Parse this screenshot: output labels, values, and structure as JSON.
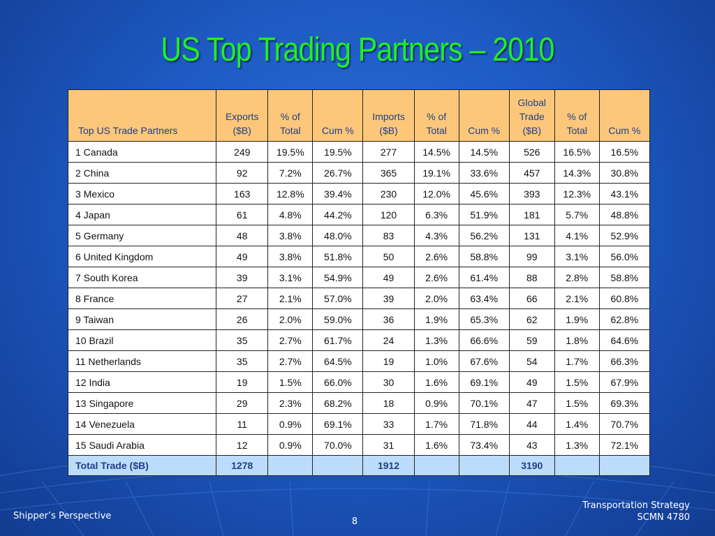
{
  "title": "US Top Trading Partners – 2010",
  "table": {
    "headers": [
      "Top US Trade Partners",
      "Exports\n($B)",
      "% of\nTotal",
      "Cum %",
      "Imports\n($B)",
      "% of\nTotal",
      "Cum %",
      "Global\nTrade\n($B)",
      "% of\nTotal",
      "Cum %"
    ],
    "rows": [
      [
        "1  Canada",
        "249",
        "19.5%",
        "19.5%",
        "277",
        "14.5%",
        "14.5%",
        "526",
        "16.5%",
        "16.5%"
      ],
      [
        "2  China",
        "92",
        "7.2%",
        "26.7%",
        "365",
        "19.1%",
        "33.6%",
        "457",
        "14.3%",
        "30.8%"
      ],
      [
        "3  Mexico",
        "163",
        "12.8%",
        "39.4%",
        "230",
        "12.0%",
        "45.6%",
        "393",
        "12.3%",
        "43.1%"
      ],
      [
        "4  Japan",
        "61",
        "4.8%",
        "44.2%",
        "120",
        "6.3%",
        "51.9%",
        "181",
        "5.7%",
        "48.8%"
      ],
      [
        "5  Germany",
        "48",
        "3.8%",
        "48.0%",
        "83",
        "4.3%",
        "56.2%",
        "131",
        "4.1%",
        "52.9%"
      ],
      [
        "6  United Kingdom",
        "49",
        "3.8%",
        "51.8%",
        "50",
        "2.6%",
        "58.8%",
        "99",
        "3.1%",
        "56.0%"
      ],
      [
        "7  South Korea",
        "39",
        "3.1%",
        "54.9%",
        "49",
        "2.6%",
        "61.4%",
        "88",
        "2.8%",
        "58.8%"
      ],
      [
        "8  France",
        "27",
        "2.1%",
        "57.0%",
        "39",
        "2.0%",
        "63.4%",
        "66",
        "2.1%",
        "60.8%"
      ],
      [
        "9  Taiwan",
        "26",
        "2.0%",
        "59.0%",
        "36",
        "1.9%",
        "65.3%",
        "62",
        "1.9%",
        "62.8%"
      ],
      [
        "10 Brazil",
        "35",
        "2.7%",
        "61.7%",
        "24",
        "1.3%",
        "66.6%",
        "59",
        "1.8%",
        "64.6%"
      ],
      [
        "11 Netherlands",
        "35",
        "2.7%",
        "64.5%",
        "19",
        "1.0%",
        "67.6%",
        "54",
        "1.7%",
        "66.3%"
      ],
      [
        "12 India",
        "19",
        "1.5%",
        "66.0%",
        "30",
        "1.6%",
        "69.1%",
        "49",
        "1.5%",
        "67.9%"
      ],
      [
        "13 Singapore",
        "29",
        "2.3%",
        "68.2%",
        "18",
        "0.9%",
        "70.1%",
        "47",
        "1.5%",
        "69.3%"
      ],
      [
        "14 Venezuela",
        "11",
        "0.9%",
        "69.1%",
        "33",
        "1.7%",
        "71.8%",
        "44",
        "1.4%",
        "70.7%"
      ],
      [
        "15 Saudi Arabia",
        "12",
        "0.9%",
        "70.0%",
        "31",
        "1.6%",
        "73.4%",
        "43",
        "1.3%",
        "72.1%"
      ]
    ],
    "total": [
      "Total Trade ($B)",
      "1278",
      "",
      "",
      "1912",
      "",
      "",
      "3190",
      "",
      ""
    ]
  },
  "footer": {
    "left": "Shipper’s Perspective",
    "page": "8",
    "right_line1": "Transportation Strategy",
    "right_line2": "SCMN 4780"
  },
  "colors": {
    "background": "#1e5bc4",
    "title": "#22ee22",
    "header_fill": "#fcc77a",
    "header_text": "#1f3f88",
    "total_fill": "#bcdcfc"
  }
}
